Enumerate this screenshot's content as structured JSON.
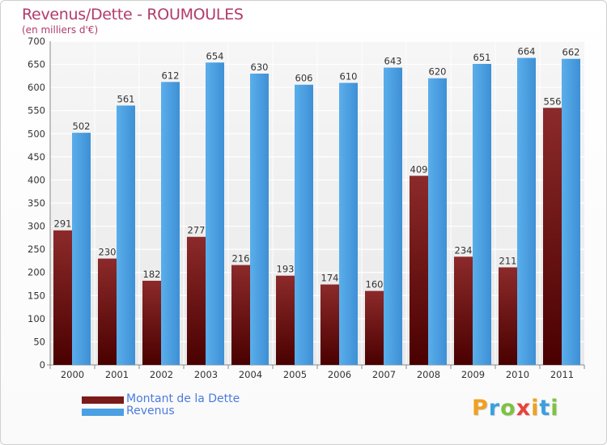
{
  "title": "Revenus/Dette - ROUMOULES",
  "subtitle": "(en milliers d'€)",
  "brand": {
    "letters": [
      "P",
      "r",
      "o",
      "x",
      "i",
      "t",
      "i"
    ],
    "colors": [
      "#f0a020",
      "#3aa0e0",
      "#7dc243",
      "#e8423c",
      "#f0a020",
      "#3aa0e0",
      "#7dc243"
    ]
  },
  "chart_data": {
    "type": "bar",
    "categories": [
      "2000",
      "2001",
      "2002",
      "2003",
      "2004",
      "2005",
      "2006",
      "2007",
      "2008",
      "2009",
      "2010",
      "2011"
    ],
    "series": [
      {
        "name": "Montant de la Dette",
        "color": "#7a1a1a",
        "values": [
          291,
          230,
          182,
          277,
          216,
          193,
          174,
          160,
          409,
          234,
          211,
          556
        ]
      },
      {
        "name": "Revenus",
        "color": "#4aa0e2",
        "values": [
          502,
          561,
          612,
          654,
          630,
          606,
          610,
          643,
          620,
          651,
          664,
          662
        ]
      }
    ],
    "ylim": [
      0,
      700
    ],
    "yticks": [
      0,
      50,
      100,
      150,
      200,
      250,
      300,
      350,
      400,
      450,
      500,
      550,
      600,
      650,
      700
    ],
    "grid": true,
    "legend": "bottom-left"
  }
}
